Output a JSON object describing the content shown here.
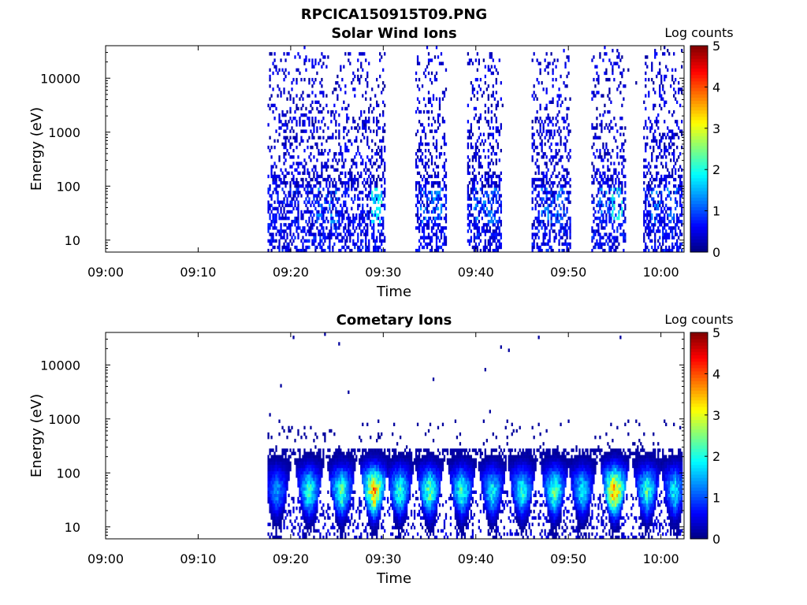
{
  "figure_title": "RPCICA150915T09.PNG",
  "chart_data": [
    {
      "type": "heatmap",
      "title": "Solar Wind Ions",
      "xlabel": "Time",
      "ylabel": "Energy (eV)",
      "x_ticks": [
        "09:00",
        "09:10",
        "09:20",
        "09:30",
        "09:40",
        "09:50",
        "10:00"
      ],
      "x_tick_minutes": [
        0,
        10,
        20,
        30,
        40,
        50,
        60
      ],
      "xlim_minutes": [
        0,
        62.5
      ],
      "y_scale": "log",
      "ylim": [
        6,
        40000
      ],
      "y_ticks": [
        "10",
        "100",
        "1000",
        "10000"
      ],
      "y_tick_values": [
        10,
        100,
        1000,
        10000
      ],
      "colorbar": {
        "label": "Log counts",
        "range": [
          0,
          5
        ],
        "ticks": [
          "0",
          "1",
          "2",
          "3",
          "4",
          "5"
        ],
        "colormap": "jet"
      },
      "data_start_minutes": 17.5,
      "data_end_minutes": 62.3,
      "bursts": [
        {
          "start": 17.5,
          "end": 30.3,
          "peak_log_counts": 2.2
        },
        {
          "start": 33.5,
          "end": 36.8,
          "peak_log_counts": 1.5
        },
        {
          "start": 39.0,
          "end": 42.8,
          "peak_log_counts": 1.3
        },
        {
          "start": 46.0,
          "end": 50.2,
          "peak_log_counts": 1.5
        },
        {
          "start": 52.5,
          "end": 56.3,
          "peak_log_counts": 2.2
        },
        {
          "start": 58.0,
          "end": 62.3,
          "peak_log_counts": 1.3
        }
      ]
    },
    {
      "type": "heatmap",
      "title": "Cometary Ions",
      "xlabel": "Time",
      "ylabel": "Energy (eV)",
      "x_ticks": [
        "09:00",
        "09:10",
        "09:20",
        "09:30",
        "09:40",
        "09:50",
        "10:00"
      ],
      "x_tick_minutes": [
        0,
        10,
        20,
        30,
        40,
        50,
        60
      ],
      "xlim_minutes": [
        0,
        62.5
      ],
      "y_scale": "log",
      "ylim": [
        6,
        40000
      ],
      "y_ticks": [
        "10",
        "100",
        "1000",
        "10000"
      ],
      "y_tick_values": [
        10,
        100,
        1000,
        10000
      ],
      "colorbar": {
        "label": "Log counts",
        "range": [
          0,
          5
        ],
        "ticks": [
          "0",
          "1",
          "2",
          "3",
          "4",
          "5"
        ],
        "colormap": "jet"
      },
      "data_start_minutes": 17.5,
      "data_end_minutes": 62.3,
      "peak_energy_eV": 45,
      "bursts": [
        {
          "center": 18.5,
          "peak_log_counts": 1.5
        },
        {
          "center": 22.0,
          "peak_log_counts": 2.3
        },
        {
          "center": 25.5,
          "peak_log_counts": 2.5
        },
        {
          "center": 29.0,
          "peak_log_counts": 3.8
        },
        {
          "center": 31.8,
          "peak_log_counts": 2.3
        },
        {
          "center": 35.0,
          "peak_log_counts": 2.5
        },
        {
          "center": 38.5,
          "peak_log_counts": 2.3
        },
        {
          "center": 41.8,
          "peak_log_counts": 2.0
        },
        {
          "center": 45.0,
          "peak_log_counts": 2.2
        },
        {
          "center": 48.5,
          "peak_log_counts": 2.5
        },
        {
          "center": 51.5,
          "peak_log_counts": 2.0
        },
        {
          "center": 55.0,
          "peak_log_counts": 3.9
        },
        {
          "center": 58.5,
          "peak_log_counts": 2.3
        },
        {
          "center": 61.5,
          "peak_log_counts": 2.0
        }
      ]
    }
  ]
}
